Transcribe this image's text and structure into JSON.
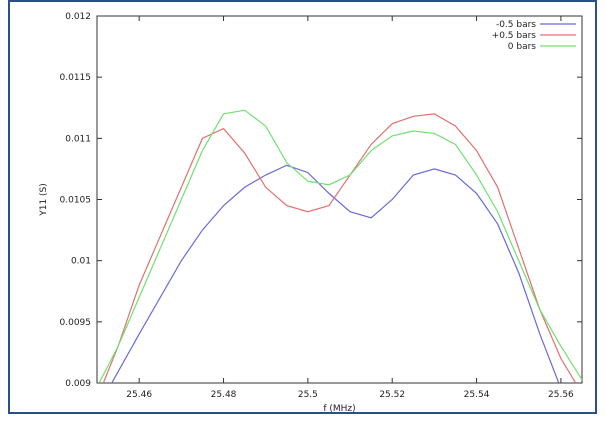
{
  "chart_data": {
    "type": "line",
    "title": "",
    "xlabel": "f (MHz)",
    "ylabel": "Y11 (S)",
    "xlim": [
      25.45,
      25.565
    ],
    "ylim": [
      0.009,
      0.012
    ],
    "grid": false,
    "legend_position": "top-right",
    "x_ticks": [
      {
        "value": 25.46,
        "label": "25.46"
      },
      {
        "value": 25.48,
        "label": "25.48"
      },
      {
        "value": 25.5,
        "label": "25.5"
      },
      {
        "value": 25.52,
        "label": "25.52"
      },
      {
        "value": 25.54,
        "label": "25.54"
      },
      {
        "value": 25.56,
        "label": "25.56"
      }
    ],
    "y_ticks": [
      {
        "value": 0.009,
        "label": "0.009"
      },
      {
        "value": 0.0095,
        "label": "0.0095"
      },
      {
        "value": 0.01,
        "label": "0.01"
      },
      {
        "value": 0.0105,
        "label": "0.0105"
      },
      {
        "value": 0.011,
        "label": "0.011"
      },
      {
        "value": 0.0115,
        "label": "0.0115"
      },
      {
        "value": 0.012,
        "label": "0.012"
      }
    ],
    "series": [
      {
        "name": "-0.5 bars",
        "color": "#6a6ad8",
        "x": [
          25.4535,
          25.46,
          25.465,
          25.47,
          25.475,
          25.48,
          25.485,
          25.49,
          25.495,
          25.5,
          25.505,
          25.51,
          25.515,
          25.52,
          25.525,
          25.53,
          25.535,
          25.54,
          25.545,
          25.55,
          25.555,
          25.5595
        ],
        "y": [
          0.009,
          0.0094,
          0.0097,
          0.01,
          0.01025,
          0.01045,
          0.0106,
          0.0107,
          0.01078,
          0.01072,
          0.01055,
          0.0104,
          0.01035,
          0.0105,
          0.0107,
          0.01075,
          0.0107,
          0.01055,
          0.0103,
          0.0099,
          0.0094,
          0.009
        ]
      },
      {
        "name": "+0.5 bars",
        "color": "#e07070",
        "x": [
          25.4515,
          25.455,
          25.46,
          25.465,
          25.47,
          25.475,
          25.48,
          25.485,
          25.49,
          25.495,
          25.5,
          25.505,
          25.51,
          25.515,
          25.52,
          25.525,
          25.53,
          25.535,
          25.54,
          25.545,
          25.55,
          25.555,
          25.56,
          25.5635
        ],
        "y": [
          0.009,
          0.0093,
          0.0098,
          0.0102,
          0.0106,
          0.011,
          0.01108,
          0.01088,
          0.0106,
          0.01045,
          0.0104,
          0.01045,
          0.0107,
          0.01095,
          0.01112,
          0.01118,
          0.0112,
          0.0111,
          0.0109,
          0.0106,
          0.0101,
          0.0096,
          0.0092,
          0.009
        ]
      },
      {
        "name": "0 bars",
        "color": "#70e070",
        "x": [
          25.4505,
          25.455,
          25.46,
          25.465,
          25.47,
          25.475,
          25.48,
          25.485,
          25.49,
          25.495,
          25.5,
          25.505,
          25.51,
          25.515,
          25.52,
          25.525,
          25.53,
          25.535,
          25.54,
          25.545,
          25.55,
          25.555,
          25.56,
          25.5655
        ],
        "y": [
          0.009,
          0.0093,
          0.0097,
          0.0101,
          0.0105,
          0.0109,
          0.0112,
          0.01123,
          0.0111,
          0.0108,
          0.01065,
          0.01062,
          0.0107,
          0.0109,
          0.01102,
          0.01106,
          0.01104,
          0.01095,
          0.0107,
          0.0104,
          0.01,
          0.0096,
          0.0093,
          0.009
        ]
      }
    ]
  }
}
